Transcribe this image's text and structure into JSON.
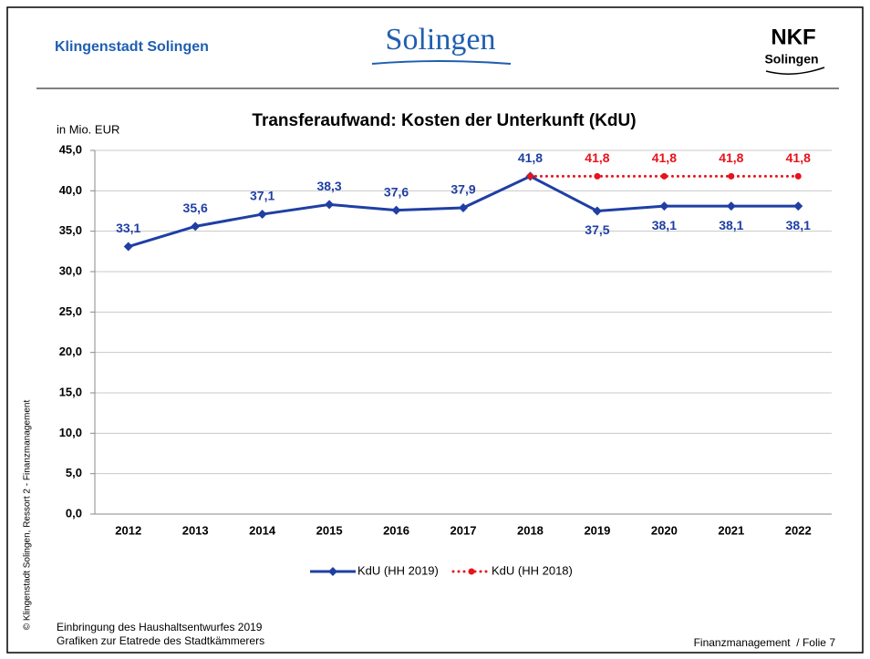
{
  "header": {
    "title": "Klingenstadt Solingen",
    "logo": "Solingen",
    "nkf": "NKF",
    "nkf_sub": "Solingen"
  },
  "side_note": "© Klingenstadt Solingen, Ressort 2 - Finanzmanagement",
  "footer": {
    "line1": "Einbringung des Haushaltsentwurfes 2019",
    "line2": "Grafiken zur Etatrede des Stadtkämmerers",
    "right": "Finanzmanagement  / Folie 7"
  },
  "chart_data": {
    "type": "line",
    "title": "Transferaufwand: Kosten der Unterkunft (KdU)",
    "y_label": "in Mio. EUR",
    "categories": [
      "2012",
      "2013",
      "2014",
      "2015",
      "2016",
      "2017",
      "2018",
      "2019",
      "2020",
      "2021",
      "2022"
    ],
    "series": [
      {
        "name": "KdU (HH 2019)",
        "color": "#1f3fa3",
        "style": "solid",
        "values": [
          33.1,
          35.6,
          37.1,
          38.3,
          37.6,
          37.9,
          41.8,
          37.5,
          38.1,
          38.1,
          38.1
        ],
        "value_labels": [
          "33,1",
          "35,6",
          "37,1",
          "38,3",
          "37,6",
          "37,9",
          "41,8",
          "37,5",
          "38,1",
          "38,1",
          "38,1"
        ]
      },
      {
        "name": "KdU (HH 2018)",
        "color": "#e8131b",
        "style": "dotted",
        "values": [
          null,
          null,
          null,
          null,
          null,
          null,
          41.8,
          41.8,
          41.8,
          41.8,
          41.8
        ],
        "value_labels": [
          null,
          null,
          null,
          null,
          null,
          null,
          null,
          "41,8",
          "41,8",
          "41,8",
          "41,8"
        ]
      }
    ],
    "ylim": [
      0,
      45
    ],
    "yticks": [
      {
        "value": 0,
        "label": "0,0"
      },
      {
        "value": 5,
        "label": "5,0"
      },
      {
        "value": 10,
        "label": "10,0"
      },
      {
        "value": 15,
        "label": "15,0"
      },
      {
        "value": 20,
        "label": "20,0"
      },
      {
        "value": 25,
        "label": "25,0"
      },
      {
        "value": 30,
        "label": "30,0"
      },
      {
        "value": 35,
        "label": "35,0"
      },
      {
        "value": 40,
        "label": "40,0"
      },
      {
        "value": 45,
        "label": "45,0"
      }
    ],
    "grid": true,
    "legend": "bottom"
  }
}
